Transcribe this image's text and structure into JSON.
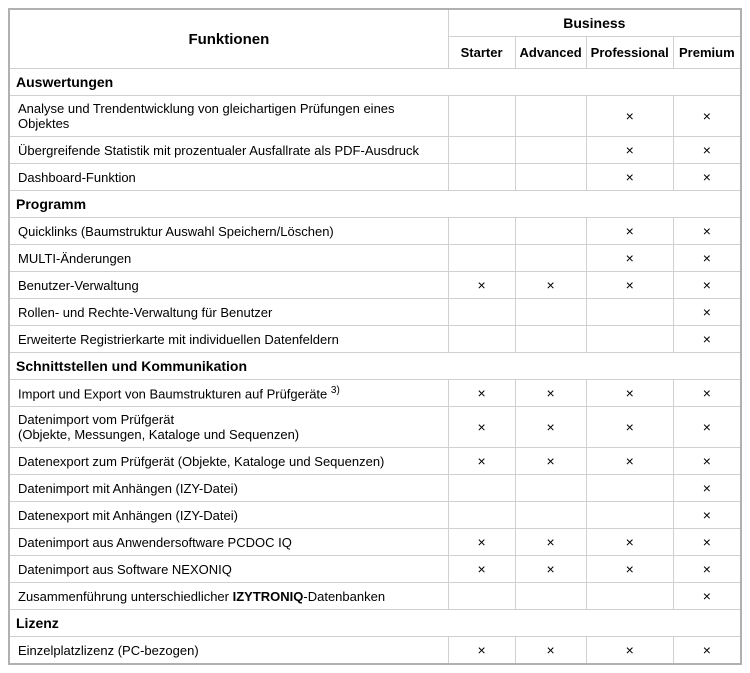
{
  "headers": {
    "funktionen": "Funktionen",
    "business": "Business",
    "tiers": [
      "Starter",
      "Advanced",
      "Professional",
      "Premium"
    ]
  },
  "mark": "×",
  "sections": [
    {
      "title": "Auswertungen",
      "rows": [
        {
          "label": "Analyse und Trendentwicklung von gleichartigen Prüfungen eines Objektes",
          "cells": [
            "",
            "",
            "×",
            "×"
          ]
        },
        {
          "label": "Übergreifende Statistik mit prozentualer Ausfallrate als PDF-Ausdruck",
          "cells": [
            "",
            "",
            "×",
            "×"
          ]
        },
        {
          "label": "Dashboard-Funktion",
          "cells": [
            "",
            "",
            "×",
            "×"
          ]
        }
      ]
    },
    {
      "title": "Programm",
      "rows": [
        {
          "label": "Quicklinks (Baumstruktur Auswahl Speichern/Löschen)",
          "cells": [
            "",
            "",
            "×",
            "×"
          ]
        },
        {
          "label": "MULTI-Änderungen",
          "cells": [
            "",
            "",
            "×",
            "×"
          ]
        },
        {
          "label": "Benutzer-Verwaltung",
          "cells": [
            "×",
            "×",
            "×",
            "×"
          ]
        },
        {
          "label": "Rollen- und Rechte-Verwaltung für Benutzer",
          "cells": [
            "",
            "",
            "",
            "×"
          ]
        },
        {
          "label": "Erweiterte Registrierkarte mit individuellen Datenfeldern",
          "cells": [
            "",
            "",
            "",
            "×"
          ]
        }
      ]
    },
    {
      "title": "Schnittstellen und Kommunikation",
      "rows": [
        {
          "label": "Import und Export von Baumstrukturen auf Prüfgeräte",
          "sup": "3)",
          "cells": [
            "×",
            "×",
            "×",
            "×"
          ]
        },
        {
          "label": "Datenimport vom Prüfgerät\n(Objekte, Messungen, Kataloge und Sequenzen)",
          "cells": [
            "×",
            "×",
            "×",
            "×"
          ]
        },
        {
          "label": "Datenexport zum Prüfgerät (Objekte, Kataloge und Sequenzen)",
          "cells": [
            "×",
            "×",
            "×",
            "×"
          ]
        },
        {
          "label": "Datenimport mit Anhängen (IZY-Datei)",
          "cells": [
            "",
            "",
            "",
            "×"
          ]
        },
        {
          "label": "Datenexport mit Anhängen (IZY-Datei)",
          "cells": [
            "",
            "",
            "",
            "×"
          ]
        },
        {
          "label": "Datenimport aus Anwendersoftware PCDOC IQ",
          "cells": [
            "×",
            "×",
            "×",
            "×"
          ]
        },
        {
          "label": "Datenimport aus Software NEXONIQ",
          "cells": [
            "×",
            "×",
            "×",
            "×"
          ]
        },
        {
          "label_html": "Zusammenführung unterschiedlicher <b>IZYTRONIQ</b>-Datenbanken",
          "cells": [
            "",
            "",
            "",
            "×"
          ]
        }
      ]
    },
    {
      "title": "Lizenz",
      "rows": [
        {
          "label": "Einzelplatzlizenz (PC-bezogen)",
          "cells": [
            "×",
            "×",
            "×",
            "×"
          ]
        }
      ]
    }
  ]
}
